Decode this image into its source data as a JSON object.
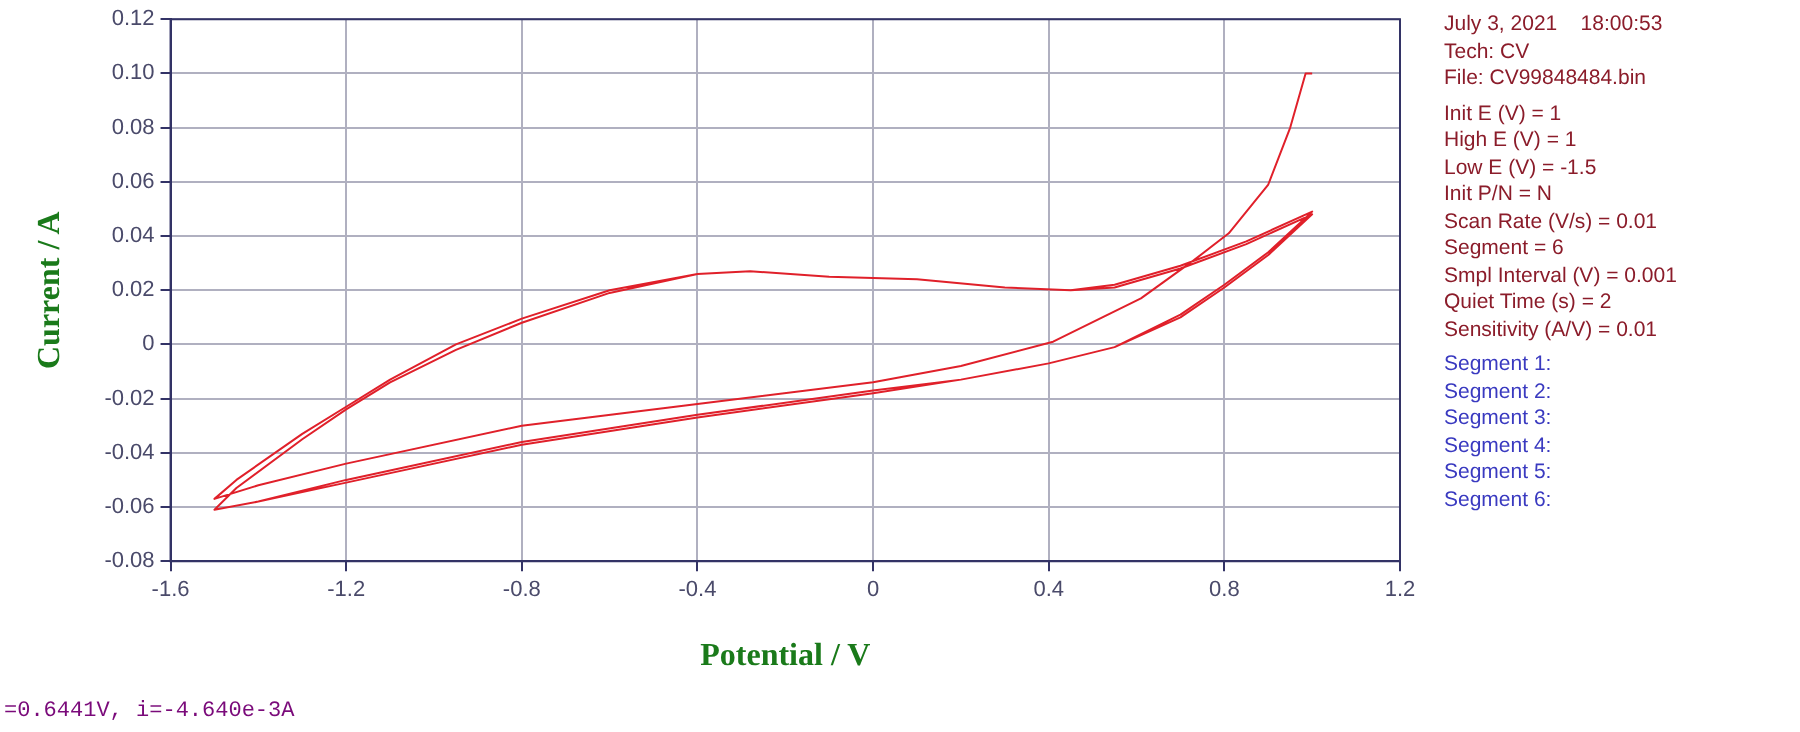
{
  "chart_data": {
    "type": "line",
    "xlabel": "Potential / V",
    "ylabel": "Current / A",
    "xlim": [
      -1.6,
      1.2
    ],
    "xticks": [
      -1.6,
      -1.2,
      -0.8,
      -0.4,
      0,
      0.4,
      0.8,
      1.2
    ],
    "ylim": [
      -0.08,
      0.12
    ],
    "yticks": [
      -0.08,
      -0.06,
      -0.04,
      -0.02,
      0,
      0.02,
      0.04,
      0.06,
      0.08,
      {
        "value": 0.1,
        "label": "0.10"
      },
      0.12
    ],
    "grid": true,
    "legend": false,
    "marker": "none",
    "line_style": "solid",
    "series": [
      {
        "color": "#e0202a",
        "x": [
          1.0,
          0.985,
          0.95,
          0.9,
          0.81,
          0.73,
          0.61,
          0.41,
          0.2,
          0,
          -0.4,
          -0.8,
          -1.2,
          -1.4,
          -1.5,
          -1.45,
          -1.3,
          -1.2,
          -1.1,
          -0.95,
          -0.8,
          -0.6,
          -0.4,
          -0.28,
          -0.1,
          0.1,
          0.3,
          0.45,
          0.55,
          0.7,
          0.85,
          1.0,
          0.9,
          0.8,
          0.7,
          0.55,
          0.4,
          0.2,
          0,
          -0.4,
          -0.8,
          -1.2,
          -1.4,
          -1.5,
          -1.45,
          -1.3,
          -1.2,
          -1.1,
          -0.95,
          -0.8,
          -0.6,
          -0.4,
          -0.28,
          -0.1,
          0.1,
          0.3,
          0.45,
          0.55,
          0.7,
          0.85,
          1.0,
          0.9,
          0.8,
          0.7,
          0.55,
          0.4,
          0.2,
          0,
          -0.4,
          -0.8,
          -1.2,
          -1.4,
          -1.5,
          -1.45,
          -1.3,
          -1.2,
          -1.1,
          -0.95,
          -0.8,
          -0.6,
          -0.4,
          -0.28,
          -0.1,
          0.1,
          0.3,
          0.45,
          0.55,
          0.7,
          0.85,
          1.0
        ],
        "values": [
          0.1,
          0.1,
          0.08,
          0.059,
          0.041,
          0.031,
          0.017,
          0.001,
          -0.008,
          -0.014,
          -0.022,
          -0.03,
          -0.044,
          -0.052,
          -0.057,
          -0.05,
          -0.033,
          -0.023,
          -0.013,
          0,
          0.0095,
          0.02,
          0.026,
          0.027,
          0.025,
          0.024,
          0.021,
          0.02,
          0.021,
          0.028,
          0.037,
          0.048,
          0.033,
          0.021,
          0.01,
          -0.001,
          -0.007,
          -0.013,
          -0.017,
          -0.026,
          -0.036,
          -0.05,
          -0.058,
          -0.061,
          -0.053,
          -0.035,
          -0.024,
          -0.014,
          -0.002,
          0.008,
          0.019,
          0.026,
          0.027,
          0.025,
          0.024,
          0.021,
          0.02,
          0.022,
          0.029,
          0.038,
          0.049,
          0.034,
          0.022,
          0.011,
          -0.001,
          -0.007,
          -0.013,
          -0.018,
          -0.027,
          -0.037,
          -0.051,
          -0.058,
          -0.061,
          -0.053,
          -0.035,
          -0.024,
          -0.014,
          -0.002,
          0.008,
          0.019,
          0.026,
          0.027,
          0.025,
          0.024,
          0.021,
          0.02,
          0.022,
          0.029,
          0.038,
          0.049
        ]
      }
    ],
    "annotations": [
      "July 3, 2021    18:00:53",
      "Tech: CV",
      "File: CV99848484.bin",
      "Init E (V) = 1",
      "High E (V) = 1",
      "Low E (V) = -1.5",
      "Init P/N = N",
      "Scan Rate (V/s) = 0.01",
      "Segment = 6",
      "Smpl Interval (V) = 0.001",
      "Quiet Time (s) = 2",
      "Sensitivity (A/V) = 0.01",
      "Segment 1:",
      "Segment 2:",
      "Segment 3:",
      "Segment 4:",
      "Segment 5:",
      "Segment 6:",
      "=0.6441V, i=-4.640e-3A"
    ]
  }
}
